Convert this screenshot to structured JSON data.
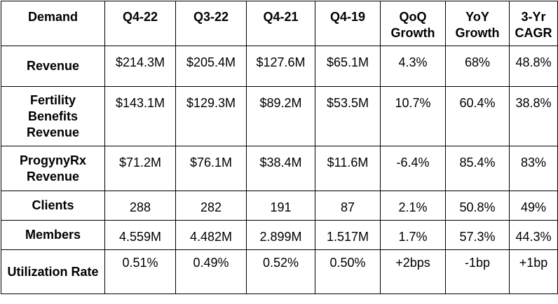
{
  "table": {
    "headers": [
      "Demand",
      "Q4-22",
      "Q3-22",
      "Q4-21",
      "Q4-19",
      "QoQ Growth",
      "YoY Growth",
      "3-Yr CAGR"
    ],
    "rows": [
      {
        "label": "Revenue",
        "values": [
          "$214.3M",
          "$205.4M",
          "$127.6M",
          "$65.1M",
          "4.3%",
          "68%",
          "48.8%"
        ]
      },
      {
        "label": "Fertility Benefits Revenue",
        "values": [
          "$143.1M",
          "$129.3M",
          "$89.2M",
          "$53.5M",
          "10.7%",
          "60.4%",
          "38.8%"
        ]
      },
      {
        "label": "ProgynyRx Revenue",
        "values": [
          "$71.2M",
          "$76.1M",
          "$38.4M",
          "$11.6M",
          "-6.4%",
          "85.4%",
          "83%"
        ]
      },
      {
        "label": "Clients",
        "values": [
          "288",
          "282",
          "191",
          "87",
          "2.1%",
          "50.8%",
          "49%"
        ]
      },
      {
        "label": "Members",
        "values": [
          "4.559M",
          "4.482M",
          "2.899M",
          "1.517M",
          "1.7%",
          "57.3%",
          "44.3%"
        ]
      },
      {
        "label": "Utilization Rate",
        "values": [
          "0.51%",
          "0.49%",
          "0.52%",
          "0.50%",
          "+2bps",
          "-1bp",
          "+1bp"
        ]
      }
    ]
  }
}
